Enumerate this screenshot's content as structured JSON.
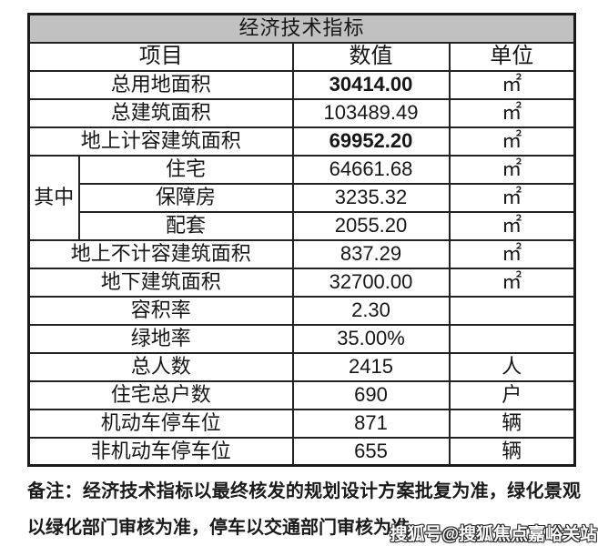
{
  "table": {
    "title": "经济技术指标",
    "headers": {
      "item": "项目",
      "value": "数值",
      "unit": "单位"
    },
    "group_label": "其中",
    "rows": [
      {
        "label": "总用地面积",
        "value": "30414.00",
        "unit": "㎡",
        "bold": true
      },
      {
        "label": "总建筑面积",
        "value": "103489.49",
        "unit": "㎡",
        "bold": false
      },
      {
        "label": "地上计容建筑面积",
        "value": "69952.20",
        "unit": "㎡",
        "bold": true
      },
      {
        "label": "住宅",
        "value": "64661.68",
        "unit": "㎡",
        "bold": false
      },
      {
        "label": "保障房",
        "value": "3235.32",
        "unit": "㎡",
        "bold": false
      },
      {
        "label": "配套",
        "value": "2055.20",
        "unit": "㎡",
        "bold": false
      },
      {
        "label": "地上不计容建筑面积",
        "value": "837.29",
        "unit": "㎡",
        "bold": false
      },
      {
        "label": "地下建筑面积",
        "value": "32700.00",
        "unit": "㎡",
        "bold": false
      },
      {
        "label": "容积率",
        "value": "2.30",
        "unit": "",
        "bold": false
      },
      {
        "label": "绿地率",
        "value": "35.00%",
        "unit": "",
        "bold": false
      },
      {
        "label": "总人数",
        "value": "2415",
        "unit": "人",
        "bold": false
      },
      {
        "label": "住宅总户数",
        "value": "690",
        "unit": "户",
        "bold": false
      },
      {
        "label": "机动车停车位",
        "value": "871",
        "unit": "辆",
        "bold": false
      },
      {
        "label": "非机动车停车位",
        "value": "655",
        "unit": "辆",
        "bold": false
      }
    ]
  },
  "note": {
    "prefix": "备注：",
    "text": "经济技术指标以最终核发的规划设计方案批复为准，绿化景观以绿化部门审核为准，停车以交通部门审核为准"
  },
  "watermark": "搜狐号@搜狐焦点嘉峪关站",
  "colors": {
    "title_background": "#c1c1c1",
    "border": "#1b1b1b",
    "text": "#161616",
    "watermark_fill": "#ffffff",
    "watermark_outline": "#2a2a2a"
  }
}
